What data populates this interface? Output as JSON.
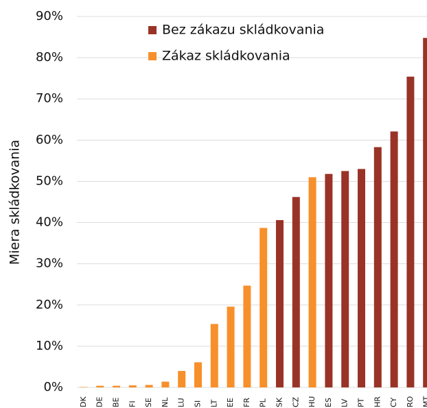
{
  "chart_data": {
    "type": "bar",
    "y_label": "Miera skládkovania",
    "categories": [
      "DK",
      "DE",
      "BE",
      "FI",
      "SE",
      "NL",
      "LU",
      "SI",
      "LT",
      "EE",
      "FR",
      "PL",
      "SK",
      "CZ",
      "HU",
      "ES",
      "LV",
      "PT",
      "HR",
      "CY",
      "RO",
      "MT"
    ],
    "series": [
      {
        "name": "Bez zákazu skládkovania",
        "color": "#9a3327",
        "values": [
          null,
          null,
          null,
          null,
          null,
          null,
          null,
          null,
          null,
          null,
          null,
          null,
          40.6,
          46.2,
          null,
          51.8,
          52.5,
          53.0,
          58.3,
          62.1,
          75.4,
          84.8
        ]
      },
      {
        "name": "Zákaz skládkovania",
        "color": "#f7902b",
        "values": [
          0.1,
          0.4,
          0.4,
          0.5,
          0.6,
          1.4,
          4.0,
          6.1,
          15.4,
          19.6,
          24.7,
          38.7,
          null,
          null,
          51.0,
          null,
          null,
          null,
          null,
          null,
          null,
          null
        ]
      }
    ],
    "ylim": [
      0,
      90
    ],
    "yticks": [
      {
        "value": 0,
        "label": "0%"
      },
      {
        "value": 10,
        "label": "10%"
      },
      {
        "value": 20,
        "label": "20%"
      },
      {
        "value": 30,
        "label": "30%"
      },
      {
        "value": 40,
        "label": "40%"
      },
      {
        "value": 50,
        "label": "50%"
      },
      {
        "value": 60,
        "label": "60%"
      },
      {
        "value": 70,
        "label": "70%"
      },
      {
        "value": 80,
        "label": "80%"
      },
      {
        "value": 90,
        "label": "90%"
      }
    ],
    "grid": true,
    "legend": "top"
  }
}
